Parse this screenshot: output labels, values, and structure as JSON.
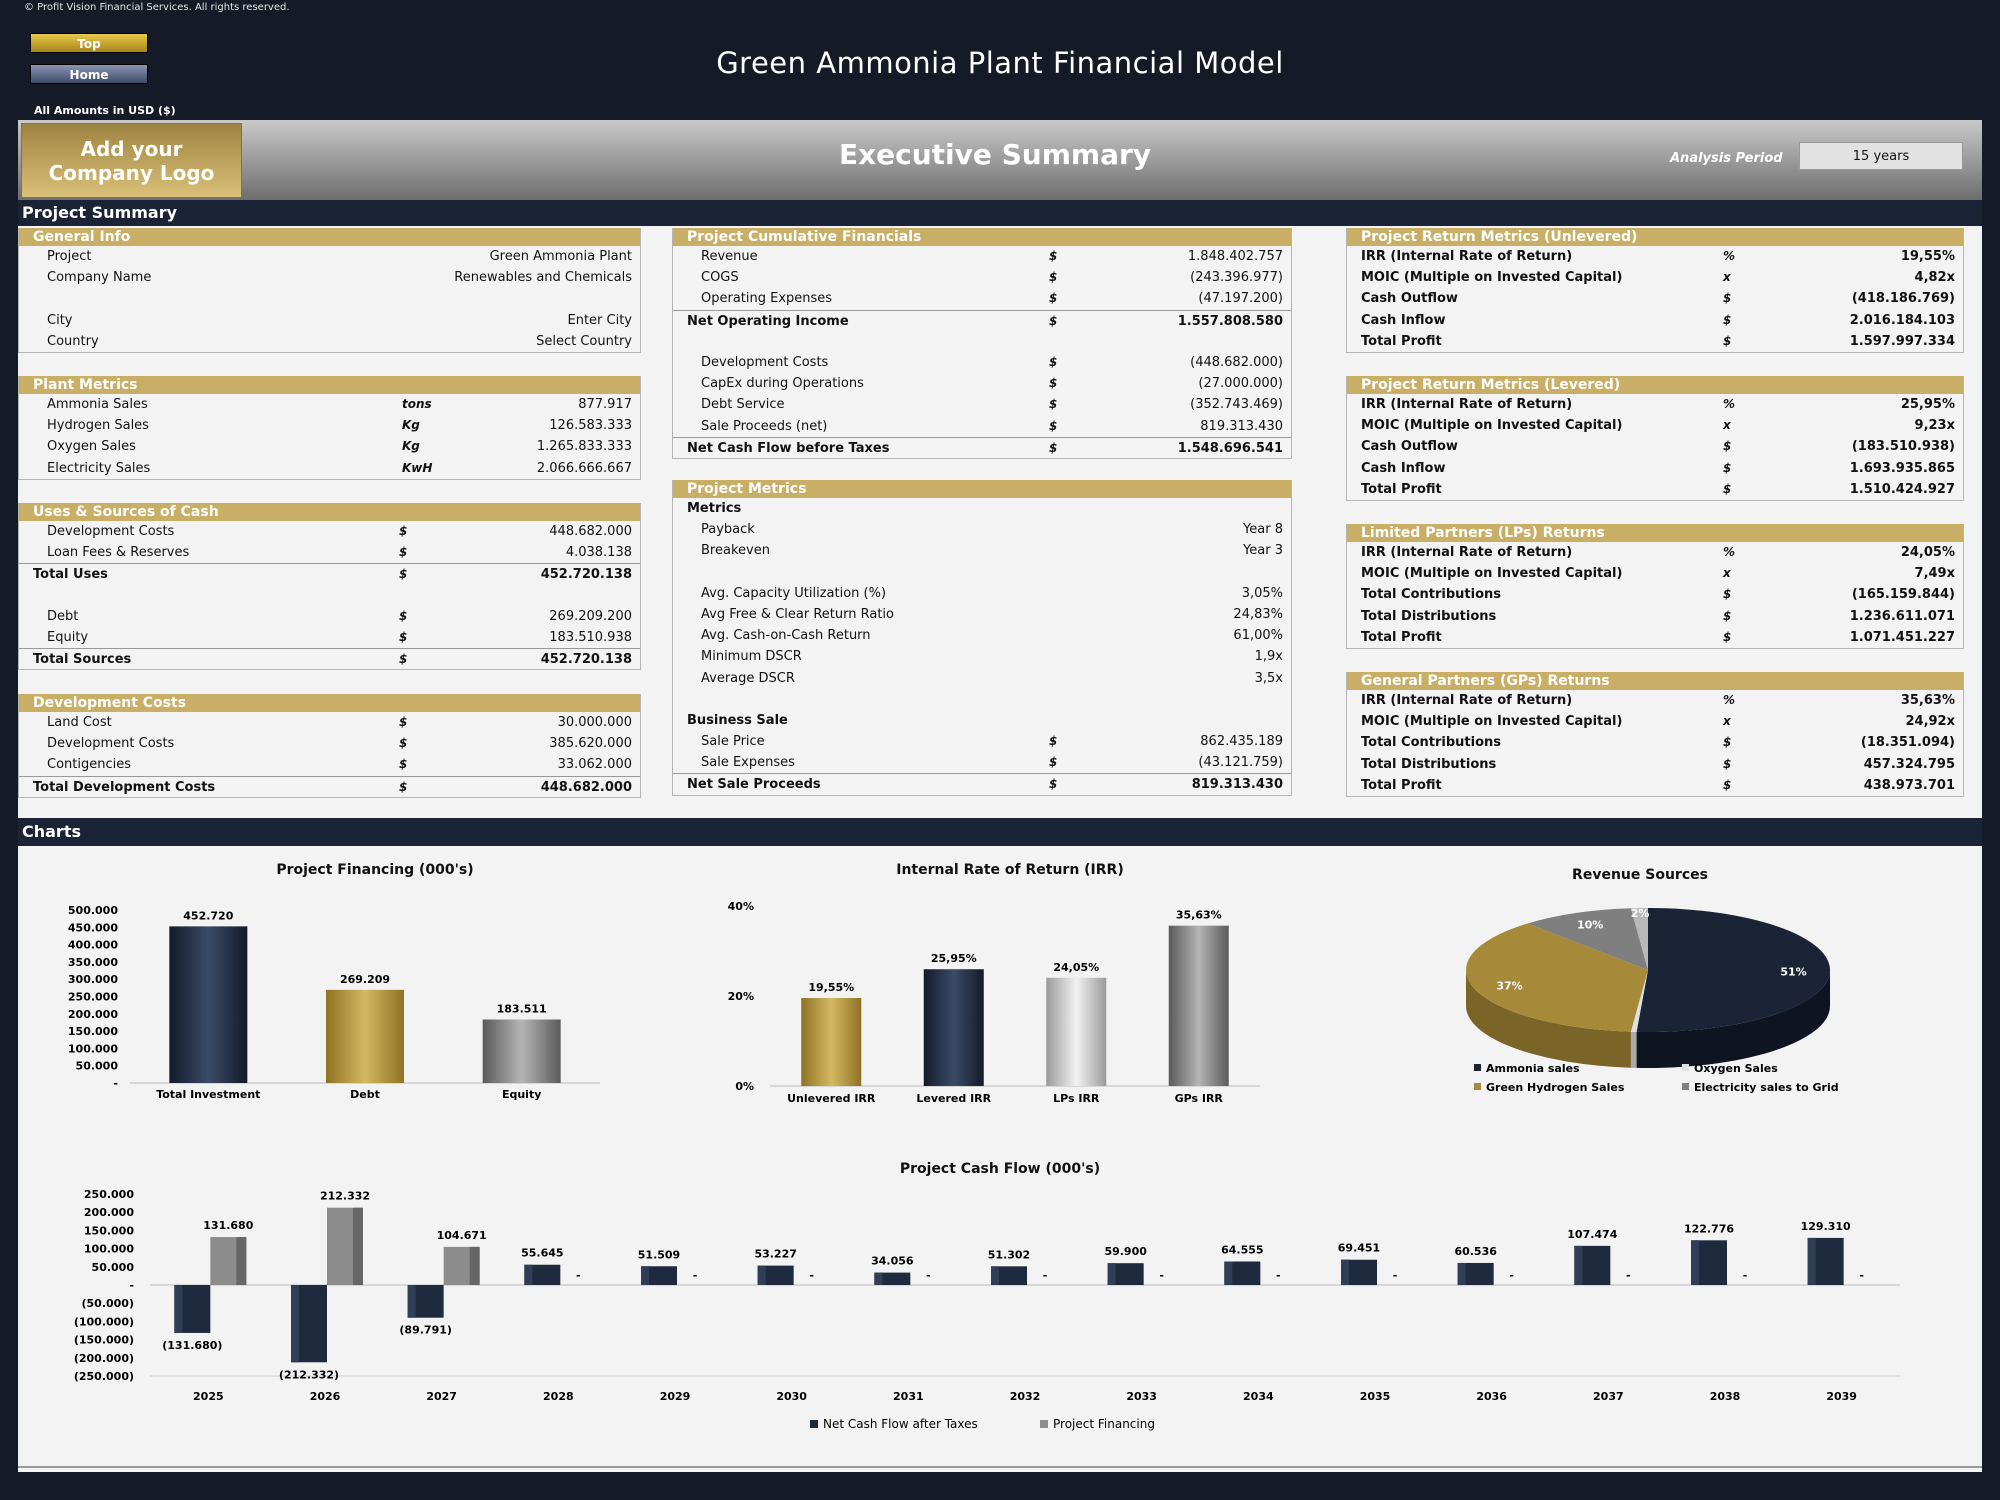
{
  "copyright": "© Profit Vision Financial Services. All rights reserved.",
  "nav": {
    "top": "Top",
    "home": "Home"
  },
  "title": "Green Ammonia Plant Financial Model",
  "amounts_note": "All Amounts in  USD ($)",
  "logo": {
    "line1": "Add your",
    "line2": "Company Logo"
  },
  "section_title": "Executive Summary",
  "analysis_period": {
    "label": "Analysis Period",
    "value": "15 years"
  },
  "project_summary_label": "Project Summary",
  "charts_label": "Charts",
  "general_info": {
    "title": "General Info",
    "rows": [
      {
        "label": "Project",
        "value": "Green Ammonia Plant"
      },
      {
        "label": "Company Name",
        "value": "Renewables and Chemicals"
      },
      {
        "label": "",
        "value": ""
      },
      {
        "label": "City",
        "value": "Enter City"
      },
      {
        "label": "Country",
        "value": "Select Country"
      }
    ]
  },
  "plant_metrics": {
    "title": "Plant Metrics",
    "rows": [
      {
        "label": "Ammonia Sales",
        "unit": "tons",
        "value": "877.917"
      },
      {
        "label": "Hydrogen Sales",
        "unit": "Kg",
        "value": "126.583.333"
      },
      {
        "label": "Oxygen Sales",
        "unit": "Kg",
        "value": "1.265.833.333"
      },
      {
        "label": "Electricity  Sales",
        "unit": "KwH",
        "value": "2.066.666.667"
      }
    ]
  },
  "uses_sources": {
    "title": "Uses & Sources of Cash",
    "rows": [
      {
        "label": "Development Costs",
        "unit": "$",
        "value": "448.682.000",
        "style": ""
      },
      {
        "label": "Loan Fees & Reserves",
        "unit": "$",
        "value": "4.038.138",
        "style": ""
      },
      {
        "label": "Total Uses",
        "unit": "$",
        "value": "452.720.138",
        "style": "total"
      },
      {
        "label": "",
        "unit": "",
        "value": "",
        "style": ""
      },
      {
        "label": "Debt",
        "unit": "$",
        "value": "269.209.200",
        "style": ""
      },
      {
        "label": "Equity",
        "unit": "$",
        "value": "183.510.938",
        "style": ""
      },
      {
        "label": "Total Sources",
        "unit": "$",
        "value": "452.720.138",
        "style": "total"
      }
    ]
  },
  "development_costs": {
    "title": "Development Costs",
    "rows": [
      {
        "label": "Land Cost",
        "unit": "$",
        "value": "30.000.000",
        "style": ""
      },
      {
        "label": "Development Costs",
        "unit": "$",
        "value": "385.620.000",
        "style": ""
      },
      {
        "label": "Contigencies",
        "unit": "$",
        "value": "33.062.000",
        "style": ""
      },
      {
        "label": "Total Development Costs",
        "unit": "$",
        "value": "448.682.000",
        "style": "total"
      }
    ]
  },
  "cumulative": {
    "title": "Project Cumulative Financials",
    "rows": [
      {
        "label": "Revenue",
        "unit": "$",
        "value": "1.848.402.757",
        "style": ""
      },
      {
        "label": "COGS",
        "unit": "$",
        "value": "(243.396.977)",
        "style": ""
      },
      {
        "label": "Operating Expenses",
        "unit": "$",
        "value": "(47.197.200)",
        "style": ""
      },
      {
        "label": "Net Operating Income",
        "unit": "$",
        "value": "1.557.808.580",
        "style": "total"
      },
      {
        "label": "",
        "unit": "",
        "value": "",
        "style": ""
      },
      {
        "label": "Development Costs",
        "unit": "$",
        "value": "(448.682.000)",
        "style": ""
      },
      {
        "label": "CapEx during Operations",
        "unit": "$",
        "value": "(27.000.000)",
        "style": ""
      },
      {
        "label": "Debt Service",
        "unit": "$",
        "value": "(352.743.469)",
        "style": ""
      },
      {
        "label": "Sale Proceeds (net)",
        "unit": "$",
        "value": "819.313.430",
        "style": ""
      },
      {
        "label": "Net Cash Flow before Taxes",
        "unit": "$",
        "value": "1.548.696.541",
        "style": "total"
      }
    ]
  },
  "project_metrics": {
    "title": "Project Metrics",
    "rows": [
      {
        "label": "Metrics",
        "unit": "",
        "value": "",
        "style": "sub"
      },
      {
        "label": "Payback",
        "unit": "",
        "value": "Year 8",
        "style": ""
      },
      {
        "label": "Breakeven",
        "unit": "",
        "value": "Year 3",
        "style": ""
      },
      {
        "label": "",
        "unit": "",
        "value": "",
        "style": ""
      },
      {
        "label": "Avg. Capacity Utilization (%)",
        "unit": "",
        "value": "3,05%",
        "style": ""
      },
      {
        "label": "Avg Free & Clear Return Ratio",
        "unit": "",
        "value": "24,83%",
        "style": ""
      },
      {
        "label": "Avg. Cash-on-Cash Return",
        "unit": "",
        "value": "61,00%",
        "style": ""
      },
      {
        "label": "Minimum DSCR",
        "unit": "",
        "value": "1,9x",
        "style": ""
      },
      {
        "label": "Average DSCR",
        "unit": "",
        "value": "3,5x",
        "style": ""
      },
      {
        "label": "",
        "unit": "",
        "value": "",
        "style": ""
      },
      {
        "label": "Business Sale",
        "unit": "",
        "value": "",
        "style": "sub"
      },
      {
        "label": "Sale Price",
        "unit": "$",
        "value": "862.435.189",
        "style": ""
      },
      {
        "label": "Sale Expenses",
        "unit": "$",
        "value": "(43.121.759)",
        "style": ""
      },
      {
        "label": "Net Sale Proceeds",
        "unit": "$",
        "value": "819.313.430",
        "style": "total"
      }
    ]
  },
  "return_unlevered": {
    "title": "Project Return Metrics (Unlevered)",
    "rows": [
      {
        "label": "IRR (Internal Rate of Return)",
        "unit": "%",
        "value": "19,55%"
      },
      {
        "label": "MOIC (Multiple on Invested Capital)",
        "unit": "x",
        "value": "4,82x"
      },
      {
        "label": "Cash Outflow",
        "unit": "$",
        "value": "(418.186.769)"
      },
      {
        "label": "Cash Inflow",
        "unit": "$",
        "value": "2.016.184.103"
      },
      {
        "label": "Total Profit",
        "unit": "$",
        "value": "1.597.997.334"
      }
    ]
  },
  "return_levered": {
    "title": "Project Return Metrics (Levered)",
    "rows": [
      {
        "label": "IRR (Internal Rate of Return)",
        "unit": "%",
        "value": "25,95%"
      },
      {
        "label": "MOIC (Multiple on Invested Capital)",
        "unit": "x",
        "value": "9,23x"
      },
      {
        "label": "Cash Outflow",
        "unit": "$",
        "value": "(183.510.938)"
      },
      {
        "label": "Cash Inflow",
        "unit": "$",
        "value": "1.693.935.865"
      },
      {
        "label": "Total Profit",
        "unit": "$",
        "value": "1.510.424.927"
      }
    ]
  },
  "lp_returns": {
    "title": "Limited Partners (LPs) Returns",
    "rows": [
      {
        "label": "IRR (Internal Rate of Return)",
        "unit": "%",
        "value": "24,05%"
      },
      {
        "label": "MOIC (Multiple on Invested Capital)",
        "unit": "x",
        "value": "7,49x"
      },
      {
        "label": "Total Contributions",
        "unit": "$",
        "value": "(165.159.844)"
      },
      {
        "label": "Total Distributions",
        "unit": "$",
        "value": "1.236.611.071"
      },
      {
        "label": "Total Profit",
        "unit": "$",
        "value": "1.071.451.227"
      }
    ]
  },
  "gp_returns": {
    "title": "General Partners (GPs) Returns",
    "rows": [
      {
        "label": "IRR (Internal Rate of Return)",
        "unit": "%",
        "value": "35,63%"
      },
      {
        "label": "MOIC (Multiple on Invested Capital)",
        "unit": "x",
        "value": "24,92x"
      },
      {
        "label": "Total Contributions",
        "unit": "$",
        "value": "(18.351.094)"
      },
      {
        "label": "Total Distributions",
        "unit": "$",
        "value": "457.324.795"
      },
      {
        "label": "Total Profit",
        "unit": "$",
        "value": "438.973.701"
      }
    ]
  },
  "colors": {
    "navy": "#1a2436",
    "gold": "#c9ae66",
    "gold_dark": "#a68a3a",
    "grey": "#7a7a7a",
    "light_grey": "#d8d8d8"
  },
  "chart_data": [
    {
      "type": "bar",
      "title": "Project Financing (000's)",
      "categories": [
        "Total Investment",
        "Debt",
        "Equity"
      ],
      "values": [
        452720,
        269209,
        183511
      ],
      "labels": [
        "452.720",
        "269.209",
        "183.511"
      ],
      "ylim": [
        0,
        500000
      ],
      "yticks": [
        "500.000",
        "450.000",
        "400.000",
        "350.000",
        "300.000",
        "250.000",
        "200.000",
        "150.000",
        "100.000",
        "50.000",
        "-"
      ]
    },
    {
      "type": "bar",
      "title": "Internal Rate of Return (IRR)",
      "categories": [
        "Unlevered IRR",
        "Levered IRR",
        "LPs IRR",
        "GPs IRR"
      ],
      "values": [
        19.55,
        25.95,
        24.05,
        35.63
      ],
      "labels": [
        "19,55%",
        "25,95%",
        "24,05%",
        "35,63%"
      ],
      "ylim": [
        0,
        40
      ],
      "yticks": [
        "40%",
        "20%",
        "0%"
      ]
    },
    {
      "type": "pie",
      "title": "Revenue Sources",
      "slices": [
        {
          "name": "Ammonia sales",
          "value": 51,
          "label": "51%"
        },
        {
          "name": "Oxygen Sales",
          "value": 0.5,
          "label": ""
        },
        {
          "name": "Green Hydrogen Sales",
          "value": 37,
          "label": "37%"
        },
        {
          "name": "Electricity sales to Grid",
          "value": 10,
          "label": "10%"
        },
        {
          "name": "",
          "value": 1.5,
          "label": "2%"
        }
      ],
      "legend_placement": "bottom"
    },
    {
      "type": "bar",
      "title": "Project Cash Flow (000's)",
      "categories": [
        "2025",
        "2026",
        "2027",
        "2028",
        "2029",
        "2030",
        "2031",
        "2032",
        "2033",
        "2034",
        "2035",
        "2036",
        "2037",
        "2038",
        "2039"
      ],
      "series": [
        {
          "name": "Net Cash Flow after Taxes",
          "values": [
            -131680,
            -212332,
            -89791,
            55645,
            51509,
            53227,
            34056,
            51302,
            59900,
            64555,
            69451,
            60536,
            107474,
            122776,
            129310
          ],
          "labels": [
            "(131.680)",
            "(212.332)",
            "(89.791)",
            "55.645",
            "51.509",
            "53.227",
            "34.056",
            "51.302",
            "59.900",
            "64.555",
            "69.451",
            "60.536",
            "107.474",
            "122.776",
            "129.310"
          ]
        },
        {
          "name": "Project Financing",
          "values": [
            131680,
            212332,
            104671,
            0,
            0,
            0,
            0,
            0,
            0,
            0,
            0,
            0,
            0,
            0,
            0
          ],
          "labels": [
            "131.680",
            "212.332",
            "104.671",
            "-",
            "-",
            "-",
            "-",
            "-",
            "-",
            "-",
            "-",
            "-",
            "-",
            "-",
            "-"
          ]
        }
      ],
      "ylim": [
        -250000,
        250000
      ],
      "yticks": [
        "250.000",
        "200.000",
        "150.000",
        "100.000",
        "50.000",
        "-",
        "(50.000)",
        "(100.000)",
        "(150.000)",
        "(200.000)",
        "(250.000)"
      ]
    }
  ]
}
